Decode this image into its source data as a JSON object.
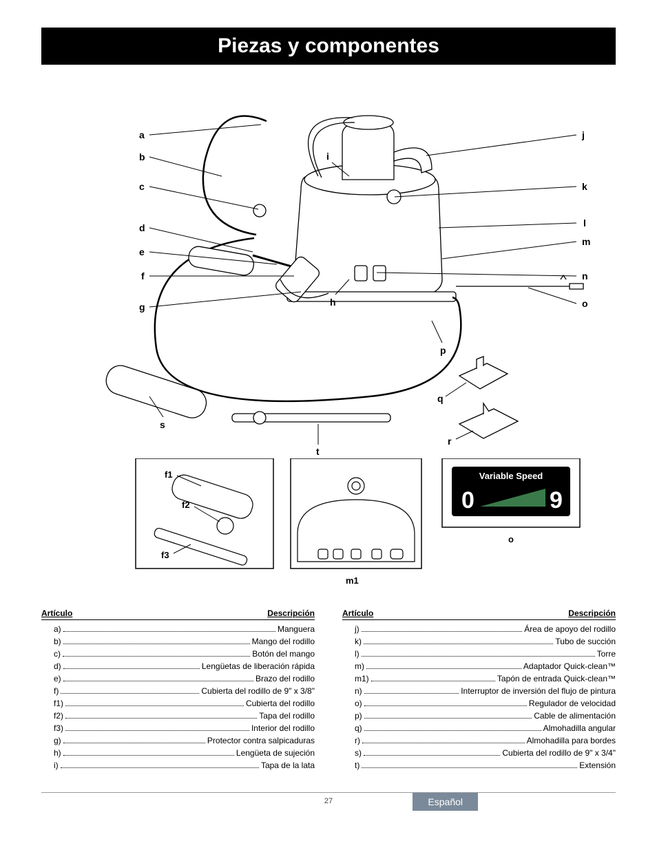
{
  "title": "Piezas y componentes",
  "page_number": "27",
  "language_tab": "Español",
  "diagram": {
    "left_labels": [
      "a",
      "b",
      "c",
      "d",
      "e",
      "f",
      "g"
    ],
    "right_labels": [
      "j",
      "k",
      "l",
      "m",
      "n",
      "o"
    ],
    "inner_labels": {
      "i": "i",
      "h": "h"
    },
    "bottom_labels": {
      "p": "p",
      "q": "q",
      "r": "r",
      "s": "s",
      "t": "t"
    },
    "detail_labels": {
      "f1": "f1",
      "f2": "f2",
      "f3": "f3",
      "m1": "m1",
      "o": "o"
    },
    "variable_speed": {
      "title": "Variable Speed",
      "min": "0",
      "max": "9"
    },
    "label_font_size": 14,
    "label_font_weight": "bold",
    "line_color": "#000000",
    "line_width": 1.3,
    "bg_color": "#ffffff"
  },
  "parts_table": {
    "header_left": "Artículo",
    "header_right": "Descripción",
    "left_column": [
      {
        "id": "a)",
        "desc": "Manguera"
      },
      {
        "id": "b)",
        "desc": "Mango del rodillo"
      },
      {
        "id": "c)",
        "desc": "Botón del mango"
      },
      {
        "id": "d)",
        "desc": "Lengüetas de liberación rápida"
      },
      {
        "id": "e)",
        "desc": "Brazo del rodillo"
      },
      {
        "id": "f)",
        "desc": "Cubierta del rodillo de 9\" x 3/8\""
      },
      {
        "id": "f1)",
        "desc": "Cubierta del rodillo"
      },
      {
        "id": "f2)",
        "desc": "Tapa del rodillo"
      },
      {
        "id": "f3)",
        "desc": "Interior del rodillo"
      },
      {
        "id": "g)",
        "desc": "Protector contra salpicaduras"
      },
      {
        "id": "h)",
        "desc": "Lengüeta de sujeción"
      },
      {
        "id": "i)",
        "desc": "Tapa de la lata"
      }
    ],
    "right_column": [
      {
        "id": "j)",
        "desc": "Área de apoyo del rodillo"
      },
      {
        "id": "k)",
        "desc": "Tubo de succión"
      },
      {
        "id": "l)",
        "desc": "Torre"
      },
      {
        "id": "m)",
        "desc": "Adaptador Quick-clean™"
      },
      {
        "id": "m1)",
        "desc": "Tapón de entrada Quick-clean™"
      },
      {
        "id": "n)",
        "desc": "Interruptor de inversión del flujo de pintura"
      },
      {
        "id": "o)",
        "desc": "Regulador de velocidad"
      },
      {
        "id": "p)",
        "desc": "Cable de alimentación"
      },
      {
        "id": "q)",
        "desc": "Almohadilla angular"
      },
      {
        "id": "r)",
        "desc": "Almohadilla para bordes"
      },
      {
        "id": "s)",
        "desc": "Cubierta del rodillo de 9\" x 3/4\""
      },
      {
        "id": "t)",
        "desc": "Extensión"
      }
    ]
  },
  "colors": {
    "title_bg": "#000000",
    "title_fg": "#ffffff",
    "lang_bg": "#7a8a9a",
    "lang_fg": "#ffffff",
    "text": "#000000"
  }
}
